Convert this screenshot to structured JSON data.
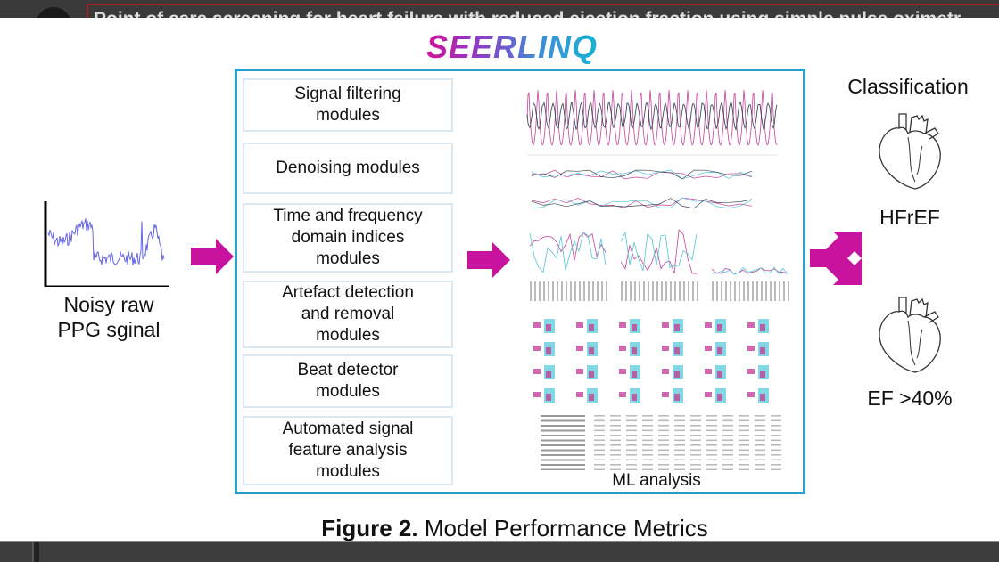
{
  "window": {
    "document_title": "Point of care screening for heart failure with reduced ejection fraction using simple pulse oximetr"
  },
  "slide": {
    "logo_text": "SEERLINQ",
    "input": {
      "label": "Noisy raw PPG sginal"
    },
    "modules": [
      "Signal filtering modules",
      "Denoising modules",
      "Time and frequency domain indices modules",
      "Artefact detection and removal modules",
      "Beat detector modules",
      "Automated signal feature analysis modules"
    ],
    "ml_label": "ML analysis",
    "classification": {
      "title": "Classification",
      "classes": [
        "HFrEF",
        "EF >40%"
      ]
    },
    "caption": {
      "bold": "Figure 2.",
      "text": " Model Performance Metrics"
    }
  },
  "colors": {
    "accent_magenta": "#c8139e",
    "frame_blue": "#2a9fd0",
    "series_pink": "#c0449a",
    "series_cyan": "#4fc6d6",
    "series_dark": "#3d4a5a",
    "signal_blue": "#4a4ae0"
  }
}
